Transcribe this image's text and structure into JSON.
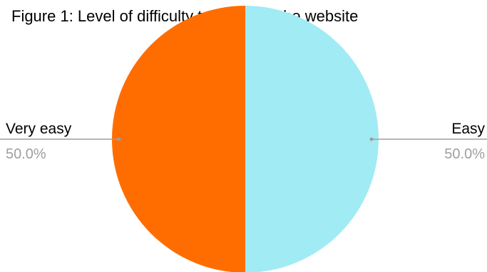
{
  "chart_data": {
    "type": "pie",
    "title": "Figure 1: Level of difficulty to navigate the website",
    "slices": [
      {
        "label": "Easy",
        "value": 50.0,
        "percent_label": "50.0%",
        "color": "#a1ebf5"
      },
      {
        "label": "Very easy",
        "value": 50.0,
        "percent_label": "50.0%",
        "color": "#ff6d00"
      }
    ],
    "label_color": "#000000",
    "percent_color": "#9e9e9e",
    "leader_color": "#9e9e9e",
    "background": "#ffffff"
  }
}
